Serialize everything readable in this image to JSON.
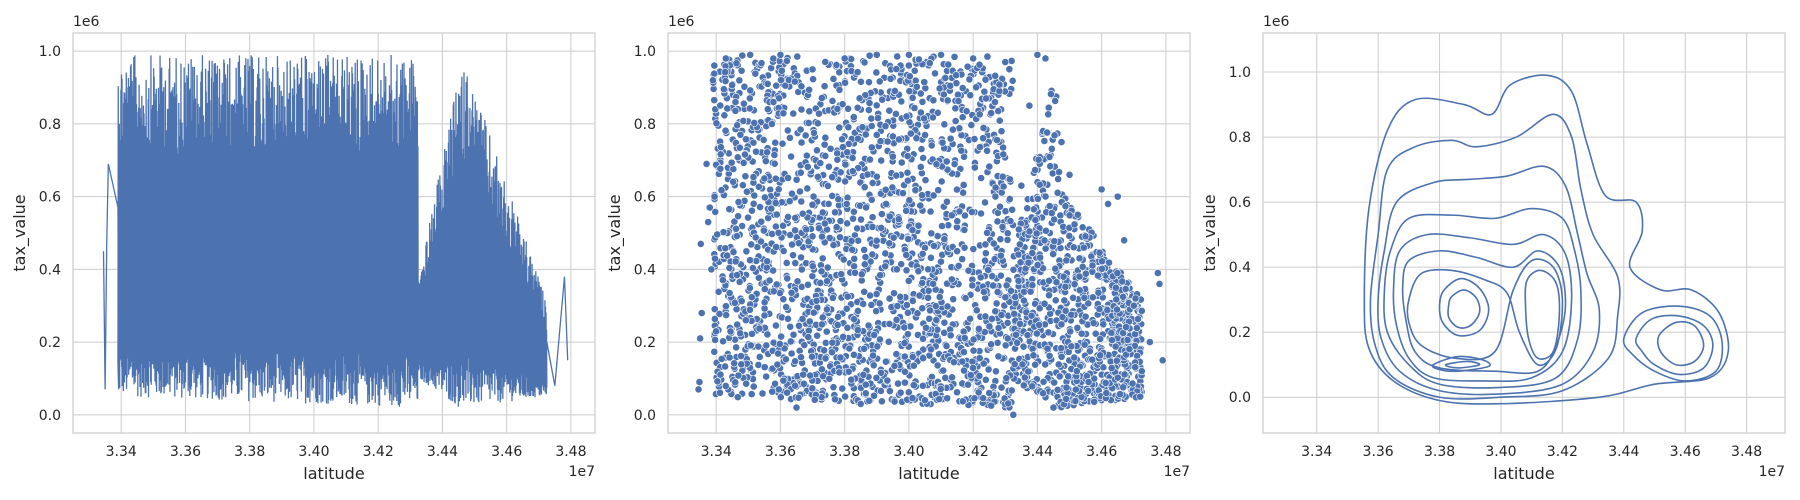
{
  "theme": {
    "line_color": "#4c72b0",
    "grid_color": "#cccccc",
    "background": "#ffffff"
  },
  "chart_data": [
    {
      "type": "line",
      "xlabel": "latitude",
      "ylabel": "tax_value",
      "x_scale_label": "1e7",
      "y_scale_label": "1e6",
      "xlim": [
        3.325,
        3.4875
      ],
      "ylim": [
        -0.05,
        1.05
      ],
      "xticks": [
        "3.34",
        "3.36",
        "3.38",
        "3.40",
        "3.42",
        "3.44",
        "3.46",
        "3.48"
      ],
      "yticks": [
        "0.0",
        "0.2",
        "0.4",
        "0.6",
        "0.8",
        "1.0"
      ],
      "grid": true,
      "series": [
        {
          "x": [
            3.3345,
            3.335,
            3.3355,
            3.336,
            3.339,
            3.3392,
            3.34,
            3.36,
            3.38,
            3.4,
            3.42,
            3.428,
            3.43,
            3.436,
            3.44,
            3.445,
            3.46,
            3.47,
            3.4725,
            3.475,
            3.478,
            3.479
          ],
          "y": [
            0.45,
            0.07,
            0.47,
            0.69,
            0.57,
            0.07,
            0.98,
            0.99,
            0.99,
            0.99,
            0.99,
            0.99,
            0.01,
            0.96,
            0.93,
            0.02,
            0.55,
            0.28,
            0.2,
            0.08,
            0.38,
            0.15
          ]
        }
      ],
      "note_envelope": {
        "x": [
          3.339,
          3.4325,
          3.4325,
          3.445,
          3.4475,
          3.4725
        ],
        "low": [
          0.05,
          0.02,
          0.1,
          0.02,
          0.02,
          0.05
        ],
        "high": [
          0.99,
          0.99,
          0.37,
          0.93,
          0.96,
          0.31
        ]
      }
    },
    {
      "type": "scatter",
      "xlabel": "latitude",
      "ylabel": "tax_value",
      "x_scale_label": "1e7",
      "y_scale_label": "1e6",
      "xlim": [
        3.325,
        3.4875
      ],
      "ylim": [
        -0.05,
        1.05
      ],
      "xticks": [
        "3.34",
        "3.36",
        "3.38",
        "3.40",
        "3.42",
        "3.44",
        "3.46",
        "3.48"
      ],
      "yticks": [
        "0.0",
        "0.2",
        "0.4",
        "0.6",
        "0.8",
        "1.0"
      ],
      "grid": true,
      "series": [
        {
          "x": [
            3.3345,
            3.3348,
            3.335,
            3.3352,
            3.3355,
            3.337,
            3.3375,
            3.338,
            3.3385,
            3.339,
            3.3395,
            3.343,
            3.346,
            3.3506,
            3.355,
            3.36,
            3.365,
            3.37,
            3.375,
            3.38,
            3.385,
            3.39,
            3.395,
            3.4,
            3.405,
            3.41,
            3.415,
            3.42,
            3.425,
            3.43,
            3.4325,
            3.435,
            3.4375,
            3.44,
            3.4425,
            3.445,
            3.4475,
            3.45,
            3.455,
            3.46,
            3.462,
            3.465,
            3.467,
            3.47,
            3.472,
            3.4725,
            3.475,
            3.4775,
            3.478,
            3.479
          ],
          "y": [
            0.07,
            0.09,
            0.21,
            0.47,
            0.28,
            0.69,
            0.53,
            0.57,
            0.4,
            0.92,
            0.6,
            0.98,
            0.86,
            0.99,
            0.65,
            0.99,
            0.02,
            0.95,
            0.58,
            0.98,
            0.03,
            0.99,
            0.71,
            0.99,
            0.04,
            0.99,
            0.45,
            0.98,
            0.06,
            0.97,
            0.0,
            0.63,
            0.85,
            0.99,
            0.98,
            0.02,
            0.75,
            0.66,
            0.27,
            0.62,
            0.58,
            0.6,
            0.48,
            0.3,
            0.05,
            0.12,
            0.2,
            0.39,
            0.36,
            0.15
          ]
        }
      ],
      "note_cloud": {
        "x": [
          3.339,
          3.4325,
          3.4325,
          3.4455,
          3.4475,
          3.4725
        ],
        "low": [
          0.05,
          0.02,
          0.1,
          0.02,
          0.02,
          0.05
        ],
        "high": [
          0.99,
          0.99,
          0.45,
          0.94,
          0.61,
          0.32
        ]
      }
    },
    {
      "type": "kde_contour",
      "xlabel": "latitude",
      "ylabel": "tax_value",
      "x_scale_label": "1e7",
      "y_scale_label": "1e6",
      "xlim": [
        3.3225,
        3.4925
      ],
      "ylim": [
        -0.11,
        1.12
      ],
      "xticks": [
        "3.34",
        "3.36",
        "3.38",
        "3.40",
        "3.42",
        "3.44",
        "3.46",
        "3.48"
      ],
      "yticks": [
        "0.0",
        "0.2",
        "0.4",
        "0.6",
        "0.8",
        "1.0"
      ],
      "grid": true,
      "contours": [
        {
          "points": [
            [
              3.3555,
              0.3
            ],
            [
              3.357,
              0.58
            ],
            [
              3.363,
              0.82
            ],
            [
              3.372,
              0.915
            ],
            [
              3.388,
              0.9
            ],
            [
              3.397,
              0.87
            ],
            [
              3.403,
              0.96
            ],
            [
              3.415,
              0.99
            ],
            [
              3.423,
              0.94
            ],
            [
              3.428,
              0.78
            ],
            [
              3.434,
              0.62
            ],
            [
              3.444,
              0.6
            ],
            [
              3.446,
              0.51
            ],
            [
              3.442,
              0.4
            ],
            [
              3.452,
              0.33
            ],
            [
              3.462,
              0.33
            ],
            [
              3.471,
              0.26
            ],
            [
              3.474,
              0.14
            ],
            [
              3.468,
              0.06
            ],
            [
              3.45,
              0.04
            ],
            [
              3.432,
              0.0
            ],
            [
              3.4,
              -0.02
            ],
            [
              3.38,
              -0.01
            ],
            [
              3.365,
              0.05
            ],
            [
              3.357,
              0.15
            ]
          ]
        },
        {
          "points": [
            [
              3.3575,
              0.3
            ],
            [
              3.36,
              0.5
            ],
            [
              3.363,
              0.7
            ],
            [
              3.372,
              0.77
            ],
            [
              3.384,
              0.79
            ],
            [
              3.392,
              0.77
            ],
            [
              3.405,
              0.8
            ],
            [
              3.417,
              0.87
            ],
            [
              3.423,
              0.8
            ],
            [
              3.426,
              0.64
            ],
            [
              3.43,
              0.5
            ],
            [
              3.438,
              0.37
            ],
            [
              3.438,
              0.25
            ],
            [
              3.435,
              0.12
            ],
            [
              3.42,
              0.02
            ],
            [
              3.4,
              0.0
            ],
            [
              3.38,
              0.0
            ],
            [
              3.365,
              0.06
            ],
            [
              3.359,
              0.16
            ]
          ]
        },
        {
          "points": [
            [
              3.36,
              0.3
            ],
            [
              3.362,
              0.45
            ],
            [
              3.366,
              0.6
            ],
            [
              3.378,
              0.66
            ],
            [
              3.39,
              0.67
            ],
            [
              3.402,
              0.68
            ],
            [
              3.414,
              0.71
            ],
            [
              3.421,
              0.65
            ],
            [
              3.425,
              0.5
            ],
            [
              3.428,
              0.38
            ],
            [
              3.432,
              0.27
            ],
            [
              3.43,
              0.14
            ],
            [
              3.42,
              0.04
            ],
            [
              3.4,
              0.01
            ],
            [
              3.38,
              0.02
            ],
            [
              3.367,
              0.08
            ],
            [
              3.361,
              0.18
            ]
          ]
        },
        {
          "points": [
            [
              3.362,
              0.32
            ],
            [
              3.364,
              0.45
            ],
            [
              3.37,
              0.55
            ],
            [
              3.384,
              0.56
            ],
            [
              3.398,
              0.55
            ],
            [
              3.41,
              0.58
            ],
            [
              3.42,
              0.55
            ],
            [
              3.424,
              0.45
            ],
            [
              3.426,
              0.33
            ],
            [
              3.425,
              0.18
            ],
            [
              3.418,
              0.06
            ],
            [
              3.4,
              0.03
            ],
            [
              3.38,
              0.04
            ],
            [
              3.37,
              0.1
            ],
            [
              3.363,
              0.2
            ]
          ]
        },
        {
          "points": [
            [
              3.365,
              0.33
            ],
            [
              3.367,
              0.45
            ],
            [
              3.376,
              0.5
            ],
            [
              3.39,
              0.49
            ],
            [
              3.404,
              0.47
            ],
            [
              3.414,
              0.5
            ],
            [
              3.421,
              0.44
            ],
            [
              3.423,
              0.3
            ],
            [
              3.42,
              0.14
            ],
            [
              3.41,
              0.06
            ],
            [
              3.395,
              0.05
            ],
            [
              3.378,
              0.06
            ],
            [
              3.37,
              0.12
            ],
            [
              3.366,
              0.22
            ]
          ]
        },
        {
          "points": [
            [
              3.368,
              0.34
            ],
            [
              3.37,
              0.42
            ],
            [
              3.38,
              0.45
            ],
            [
              3.392,
              0.43
            ],
            [
              3.404,
              0.4
            ],
            [
              3.412,
              0.45
            ],
            [
              3.419,
              0.4
            ],
            [
              3.421,
              0.28
            ],
            [
              3.418,
              0.16
            ],
            [
              3.412,
              0.08
            ],
            [
              3.398,
              0.08
            ],
            [
              3.38,
              0.09
            ],
            [
              3.372,
              0.14
            ],
            [
              3.369,
              0.24
            ]
          ]
        },
        {
          "points": [
            [
              3.37,
              0.3
            ],
            [
              3.374,
              0.38
            ],
            [
              3.384,
              0.39
            ],
            [
              3.395,
              0.36
            ],
            [
              3.402,
              0.32
            ],
            [
              3.406,
              0.2
            ],
            [
              3.412,
              0.1
            ],
            [
              3.418,
              0.15
            ],
            [
              3.42,
              0.3
            ],
            [
              3.417,
              0.4
            ],
            [
              3.41,
              0.42
            ],
            [
              3.404,
              0.33
            ],
            [
              3.398,
              0.14
            ],
            [
              3.385,
              0.12
            ],
            [
              3.374,
              0.16
            ],
            [
              3.37,
              0.23
            ]
          ]
        },
        {
          "points": [
            [
              3.3815,
              0.33
            ],
            [
              3.387,
              0.365
            ],
            [
              3.393,
              0.335
            ],
            [
              3.396,
              0.27
            ],
            [
              3.393,
              0.205
            ],
            [
              3.386,
              0.19
            ],
            [
              3.381,
              0.23
            ],
            [
              3.38,
              0.285
            ]
          ]
        },
        {
          "points": [
            [
              3.384,
              0.31
            ],
            [
              3.388,
              0.33
            ],
            [
              3.392,
              0.305
            ],
            [
              3.393,
              0.26
            ],
            [
              3.39,
              0.22
            ],
            [
              3.386,
              0.215
            ],
            [
              3.383,
              0.245
            ],
            [
              3.383,
              0.285
            ]
          ]
        },
        {
          "points": [
            [
              3.4085,
              0.36
            ],
            [
              3.413,
              0.39
            ],
            [
              3.418,
              0.35
            ],
            [
              3.419,
              0.25
            ],
            [
              3.417,
              0.14
            ],
            [
              3.412,
              0.12
            ],
            [
              3.409,
              0.18
            ],
            [
              3.408,
              0.28
            ]
          ]
        },
        {
          "points": [
            [
              3.378,
              0.1
            ],
            [
              3.386,
              0.125
            ],
            [
              3.394,
              0.115
            ],
            [
              3.396,
              0.095
            ],
            [
              3.386,
              0.08
            ],
            [
              3.38,
              0.085
            ]
          ]
        },
        {
          "points": [
            [
              3.382,
              0.1
            ],
            [
              3.389,
              0.11
            ],
            [
              3.393,
              0.1
            ],
            [
              3.386,
              0.09
            ]
          ]
        },
        {
          "points": [
            [
              3.44,
              0.18
            ],
            [
              3.446,
              0.26
            ],
            [
              3.458,
              0.28
            ],
            [
              3.468,
              0.25
            ],
            [
              3.472,
              0.17
            ],
            [
              3.47,
              0.08
            ],
            [
              3.46,
              0.05
            ],
            [
              3.45,
              0.08
            ],
            [
              3.443,
              0.13
            ]
          ]
        },
        {
          "points": [
            [
              3.444,
              0.18
            ],
            [
              3.449,
              0.24
            ],
            [
              3.458,
              0.25
            ],
            [
              3.466,
              0.22
            ],
            [
              3.469,
              0.16
            ],
            [
              3.466,
              0.09
            ],
            [
              3.458,
              0.07
            ],
            [
              3.45,
              0.1
            ],
            [
              3.446,
              0.14
            ]
          ]
        },
        {
          "points": [
            [
              3.4515,
              0.19
            ],
            [
              3.457,
              0.23
            ],
            [
              3.463,
              0.22
            ],
            [
              3.466,
              0.16
            ],
            [
              3.463,
              0.11
            ],
            [
              3.457,
              0.1
            ],
            [
              3.452,
              0.14
            ]
          ]
        }
      ]
    }
  ]
}
